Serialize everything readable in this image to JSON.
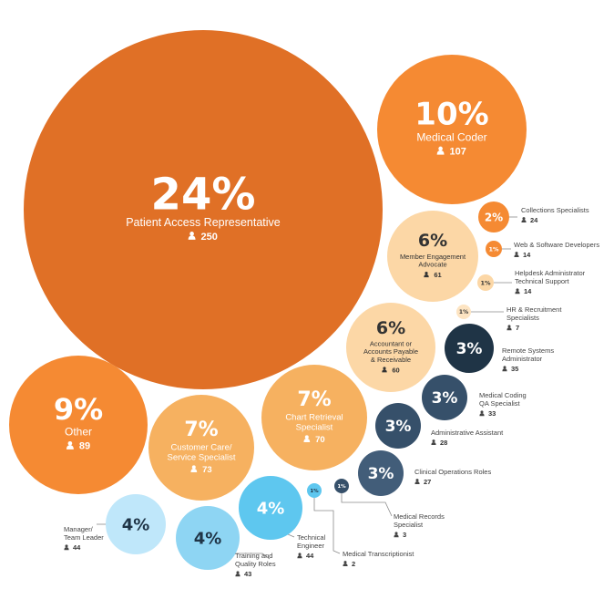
{
  "chart_data": {
    "type": "bubble",
    "title": "",
    "value_unit": "people",
    "icons": {
      "count_icon": "person-icon"
    },
    "colors": {
      "orange_dark": "#e07026",
      "orange": "#f58a33",
      "orange_light": "#f6b160",
      "peach": "#fcd7a6",
      "peach_pale": "#fde4c2",
      "navy": "#1f3446",
      "slate": "#36506a",
      "slate_light": "#425d79",
      "blue": "#5ec7ef",
      "blue_light": "#8ed5f3",
      "blue_pale": "#bfe7fa",
      "text_light": "#ffffff",
      "text_dark": "#333333",
      "text_navy": "#1f3446"
    },
    "items": [
      {
        "id": "patient-access-representative",
        "percent": "24%",
        "label": "Patient Access Representative",
        "count": 250,
        "color": "orange_dark"
      },
      {
        "id": "medical-coder",
        "percent": "10%",
        "label": "Medical Coder",
        "count": 107,
        "color": "orange"
      },
      {
        "id": "other",
        "percent": "9%",
        "label": "Other",
        "count": 89,
        "color": "orange"
      },
      {
        "id": "customer-care-service-specialist",
        "percent": "7%",
        "label": "Customer Care/ Service Specialist",
        "count": 73,
        "color": "orange_light"
      },
      {
        "id": "chart-retrieval-specialist",
        "percent": "7%",
        "label": "Chart Retrieval Specialist",
        "count": 70,
        "color": "orange_light"
      },
      {
        "id": "member-engagement-advocate",
        "percent": "6%",
        "label": "Member Engagement Advocate",
        "count": 61,
        "color": "peach"
      },
      {
        "id": "accountant-accounts-payable-receivable",
        "percent": "6%",
        "label": "Accountant or Accounts Payable & Receivable",
        "count": 60,
        "color": "peach"
      },
      {
        "id": "remote-systems-administrator",
        "percent": "3%",
        "label": "Remote Systems Administrator",
        "count": 35,
        "color": "navy"
      },
      {
        "id": "medical-coding-qa-specialist",
        "percent": "3%",
        "label": "Medical Coding QA Specialist",
        "count": 33,
        "color": "slate"
      },
      {
        "id": "administrative-assistant",
        "percent": "3%",
        "label": "Administrative Assistant",
        "count": 28,
        "color": "slate"
      },
      {
        "id": "clinical-operations-roles",
        "percent": "3%",
        "label": "Clinical Operations Roles",
        "count": 27,
        "color": "slate_light"
      },
      {
        "id": "collections-specialists",
        "percent": "2%",
        "label": "Collections Specialists",
        "count": 24,
        "color": "orange"
      },
      {
        "id": "web-software-developers",
        "percent": "1%",
        "label": "Web & Software Developers",
        "count": 14,
        "color": "orange"
      },
      {
        "id": "helpdesk-administrator-technical-support",
        "percent": "1%",
        "label": "Helpdesk Administrator Technical Support",
        "count": 14,
        "color": "peach"
      },
      {
        "id": "hr-recruitment-specialists",
        "percent": "1%",
        "label": "HR & Recruitment Specialists",
        "count": 7,
        "color": "peach_pale"
      },
      {
        "id": "technical-engineer",
        "percent": "4%",
        "label": "Technical Engineer",
        "count": 44,
        "color": "blue"
      },
      {
        "id": "training-and-quality-roles",
        "percent": "4%",
        "label": "Training and Quality Roles",
        "count": 43,
        "color": "blue_light"
      },
      {
        "id": "manager-team-leader",
        "percent": "4%",
        "label": "Manager/ Team Leader",
        "count": 44,
        "color": "blue_pale"
      },
      {
        "id": "medical-records-specialist",
        "percent": "1%",
        "label": "Medical Records Specialist",
        "count": 3,
        "color": "slate"
      },
      {
        "id": "medical-transcriptionist",
        "percent": "1%",
        "label": "Medical Transcriptionist",
        "count": 2,
        "color": "blue"
      }
    ]
  }
}
